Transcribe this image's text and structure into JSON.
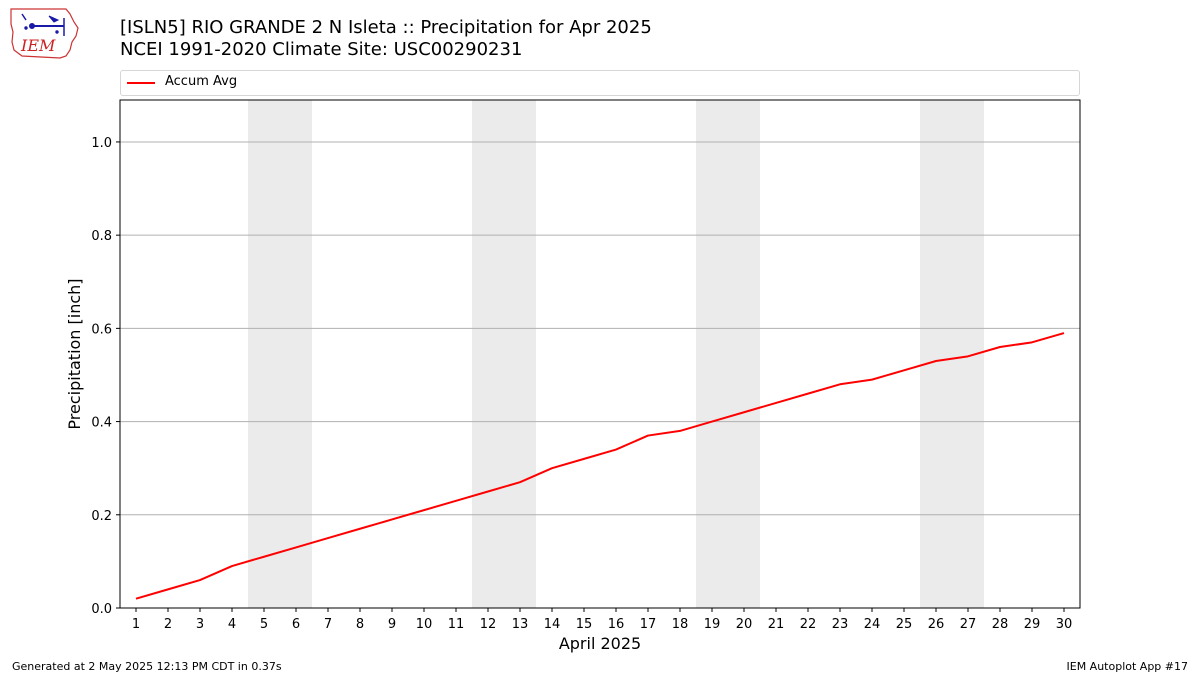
{
  "logo": {
    "text": "IEM"
  },
  "header": {
    "title_line1": "[ISLN5] RIO GRANDE 2 N Isleta :: Precipitation for Apr 2025",
    "title_line2": "NCEI 1991-2020 Climate Site: USC00290231"
  },
  "footer": {
    "generated": "Generated at 2 May 2025 12:13 PM CDT in 0.37s",
    "app": "IEM Autoplot App #17"
  },
  "colors": {
    "series": "#ff0000",
    "weekend_band": "#ebebeb",
    "grid": "#b0b0b0"
  },
  "chart_data": {
    "type": "line",
    "title": "[ISLN5] RIO GRANDE 2 N Isleta :: Precipitation for Apr 2025",
    "subtitle": "NCEI 1991-2020 Climate Site: USC00290231",
    "xlabel": "April 2025",
    "ylabel": "Precipitation [inch]",
    "x": [
      1,
      2,
      3,
      4,
      5,
      6,
      7,
      8,
      9,
      10,
      11,
      12,
      13,
      14,
      15,
      16,
      17,
      18,
      19,
      20,
      21,
      22,
      23,
      24,
      25,
      26,
      27,
      28,
      29,
      30
    ],
    "x_ticks": [
      "1",
      "2",
      "3",
      "4",
      "5",
      "6",
      "7",
      "8",
      "9",
      "10",
      "11",
      "12",
      "13",
      "14",
      "15",
      "16",
      "17",
      "18",
      "19",
      "20",
      "21",
      "22",
      "23",
      "24",
      "25",
      "26",
      "27",
      "28",
      "29",
      "30"
    ],
    "y_ticks": [
      "0.0",
      "0.2",
      "0.4",
      "0.6",
      "0.8",
      "1.0"
    ],
    "xlim": [
      0.5,
      30.5
    ],
    "ylim": [
      0,
      1.09
    ],
    "grid": "horizontal",
    "legend_position": "top",
    "shaded_days": [
      [
        5,
        6
      ],
      [
        12,
        13
      ],
      [
        19,
        20
      ],
      [
        26,
        27
      ]
    ],
    "series": [
      {
        "name": "Accum Avg",
        "color": "#ff0000",
        "values": [
          0.02,
          0.04,
          0.06,
          0.09,
          0.11,
          0.13,
          0.15,
          0.17,
          0.19,
          0.21,
          0.23,
          0.25,
          0.27,
          0.3,
          0.32,
          0.34,
          0.37,
          0.38,
          0.4,
          0.42,
          0.44,
          0.46,
          0.48,
          0.49,
          0.51,
          0.53,
          0.54,
          0.56,
          0.57,
          0.59
        ]
      }
    ]
  }
}
